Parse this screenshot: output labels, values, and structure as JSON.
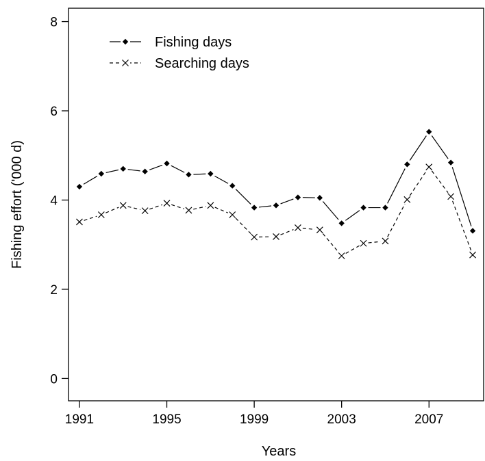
{
  "chart_data": {
    "type": "line",
    "title": "",
    "xlabel": "Years",
    "ylabel": "Fishing effort ('000 d)",
    "x": [
      1991,
      1992,
      1993,
      1994,
      1995,
      1996,
      1997,
      1998,
      1999,
      2000,
      2001,
      2002,
      2003,
      2004,
      2005,
      2006,
      2007,
      2008,
      2009
    ],
    "xlim": [
      1990.5,
      2009.5
    ],
    "ylim": [
      -0.5,
      8.3
    ],
    "xticks": [
      "1991",
      "1995",
      "1999",
      "2003",
      "2007"
    ],
    "yticks": [
      "0",
      "2",
      "4",
      "6",
      "8"
    ],
    "legend_position": "top-left",
    "grid": false,
    "series": [
      {
        "name": "Fishing days",
        "marker": "filled-diamond",
        "line_style": "solid",
        "color": "#000000",
        "values": [
          4.3,
          4.59,
          4.7,
          4.64,
          4.82,
          4.57,
          4.59,
          4.32,
          3.83,
          3.88,
          4.06,
          4.05,
          3.48,
          3.83,
          3.83,
          4.8,
          5.53,
          4.84,
          3.31
        ]
      },
      {
        "name": "Searching days",
        "marker": "cross",
        "line_style": "dashed",
        "color": "#000000",
        "values": [
          3.51,
          3.67,
          3.88,
          3.76,
          3.93,
          3.77,
          3.88,
          3.67,
          3.17,
          3.18,
          3.38,
          3.33,
          2.75,
          3.03,
          3.08,
          4.01,
          4.74,
          4.08,
          2.77
        ]
      }
    ]
  }
}
